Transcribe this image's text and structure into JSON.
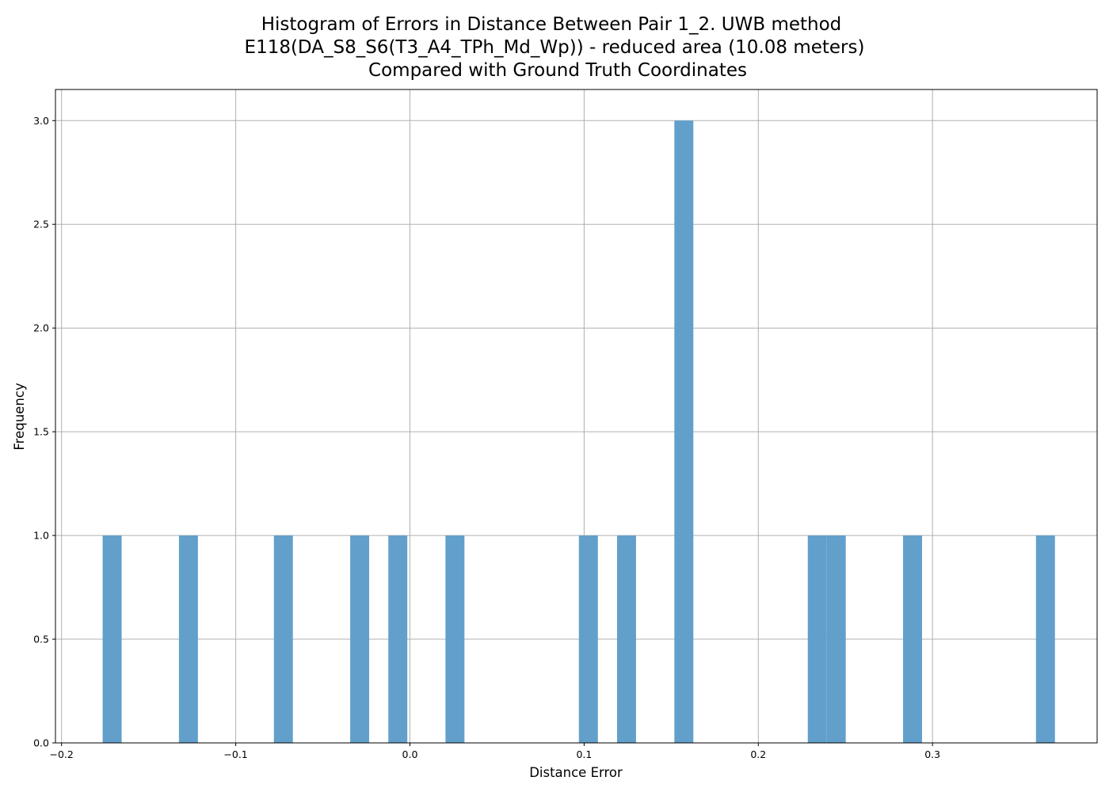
{
  "chart_data": {
    "type": "bar",
    "title_lines": [
      "Histogram of Errors in Distance Between Pair 1_2. UWB method",
      "E118(DA_S8_S6(T3_A4_TPh_Md_Wp)) - reduced area (10.08 meters)",
      "Compared with Ground Truth Coordinates"
    ],
    "xlabel": "Distance Error",
    "ylabel": "Frequency",
    "xlim": [
      -0.2035,
      0.3945
    ],
    "ylim": [
      0,
      3.15
    ],
    "grid": true,
    "bar_color": "#62a0cb",
    "bin_width": 0.0109,
    "x_ticks": [
      {
        "value": -0.2,
        "label": "−0.2"
      },
      {
        "value": -0.1,
        "label": "−0.1"
      },
      {
        "value": 0.0,
        "label": "0.0"
      },
      {
        "value": 0.1,
        "label": "0.1"
      },
      {
        "value": 0.2,
        "label": "0.2"
      },
      {
        "value": 0.3,
        "label": "0.3"
      }
    ],
    "y_ticks": [
      {
        "value": 0.0,
        "label": "0.0"
      },
      {
        "value": 0.5,
        "label": "0.5"
      },
      {
        "value": 1.0,
        "label": "1.0"
      },
      {
        "value": 1.5,
        "label": "1.5"
      },
      {
        "value": 2.0,
        "label": "2.0"
      },
      {
        "value": 2.5,
        "label": "2.5"
      },
      {
        "value": 3.0,
        "label": "3.0"
      }
    ],
    "bins": [
      {
        "start": -0.1764,
        "count": 1
      },
      {
        "start": -0.1326,
        "count": 1
      },
      {
        "start": -0.0781,
        "count": 1
      },
      {
        "start": -0.0343,
        "count": 1
      },
      {
        "start": -0.0124,
        "count": 1
      },
      {
        "start": 0.0204,
        "count": 1
      },
      {
        "start": 0.097,
        "count": 1
      },
      {
        "start": 0.1189,
        "count": 1
      },
      {
        "start": 0.1518,
        "count": 3
      },
      {
        "start": 0.2284,
        "count": 1
      },
      {
        "start": 0.2393,
        "count": 1
      },
      {
        "start": 0.2831,
        "count": 1
      },
      {
        "start": 0.3594,
        "count": 1
      }
    ]
  }
}
